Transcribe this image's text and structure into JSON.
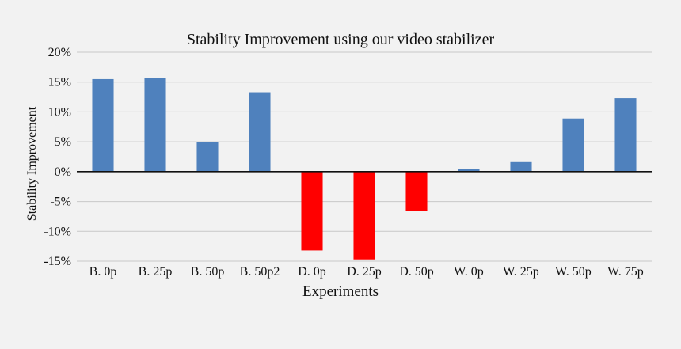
{
  "chart_data": {
    "type": "bar",
    "title": "Stability Improvement using our video stabilizer",
    "xlabel": "Experiments",
    "ylabel": "Stability Improvement",
    "categories": [
      "B. 0p",
      "B. 25p",
      "B. 50p",
      "B. 50p2",
      "D. 0p",
      "D. 25p",
      "D. 50p",
      "W. 0p",
      "W. 25p",
      "W. 50p",
      "W. 75p"
    ],
    "values": [
      15.5,
      15.7,
      5.0,
      13.3,
      -13.2,
      -14.7,
      -6.6,
      0.5,
      1.6,
      8.9,
      12.3
    ],
    "ylim": [
      -15,
      20
    ],
    "yticks": [
      20,
      15,
      10,
      5,
      0,
      -5,
      -10,
      -15
    ],
    "ytick_labels": [
      "20%",
      "15%",
      "10%",
      "5%",
      "0%",
      "-5%",
      "-10%",
      "-15%"
    ],
    "grid": true,
    "legend": "none",
    "colors": {
      "positive": "#4f81bd",
      "negative": "#ff0000",
      "background": "#f2f2f2"
    }
  }
}
